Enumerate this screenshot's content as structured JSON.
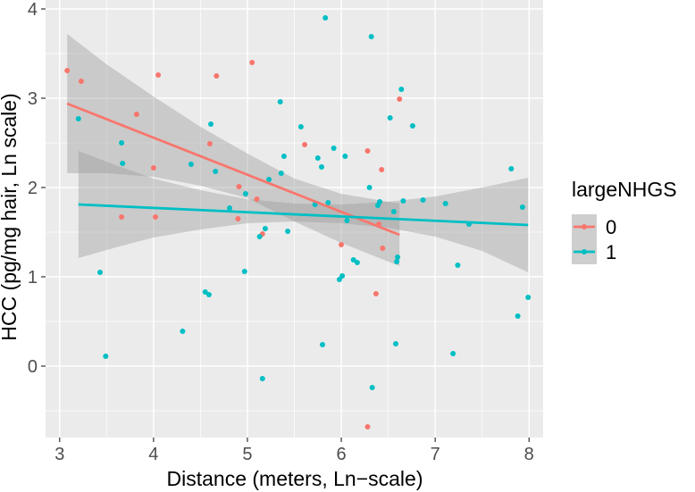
{
  "chart_data": {
    "type": "scatter",
    "title": "",
    "xlabel": "Distance (meters, Ln−scale)",
    "ylabel": "HCC (pg/mg hair, Ln scale)",
    "xlim": [
      2.85,
      8.15
    ],
    "ylim": [
      -0.8,
      4.1
    ],
    "x_ticks": [
      3,
      4,
      5,
      6,
      7,
      8
    ],
    "y_ticks": [
      0,
      1,
      2,
      3,
      4
    ],
    "x_tick_labels": [
      "3",
      "4",
      "5",
      "6",
      "7",
      "8"
    ],
    "y_tick_labels": [
      "0",
      "1",
      "2",
      "3",
      "4"
    ],
    "grid": true,
    "background": "#ebebeb",
    "legend": {
      "title": "largeNHGS",
      "position": "right",
      "entries": [
        "0",
        "1"
      ]
    },
    "series": [
      {
        "name": "0",
        "color": "#f8766d",
        "points": [
          [
            3.08,
            3.31
          ],
          [
            3.23,
            3.19
          ],
          [
            3.66,
            1.67
          ],
          [
            3.82,
            2.82
          ],
          [
            4.0,
            2.22
          ],
          [
            4.02,
            1.67
          ],
          [
            4.05,
            3.26
          ],
          [
            4.6,
            2.49
          ],
          [
            4.67,
            3.25
          ],
          [
            4.9,
            1.65
          ],
          [
            4.91,
            2.01
          ],
          [
            5.05,
            3.4
          ],
          [
            5.1,
            1.87
          ],
          [
            5.16,
            1.48
          ],
          [
            5.61,
            2.48
          ],
          [
            6.0,
            1.36
          ],
          [
            6.28,
            2.41
          ],
          [
            6.28,
            -0.68
          ],
          [
            6.37,
            0.81
          ],
          [
            6.4,
            1.59
          ],
          [
            6.43,
            2.2
          ],
          [
            6.44,
            1.32
          ],
          [
            6.62,
            2.99
          ]
        ],
        "fit": {
          "x": [
            3.08,
            6.62
          ],
          "y": [
            2.94,
            1.47
          ]
        },
        "band": {
          "x": [
            3.08,
            3.5,
            4.0,
            4.5,
            5.0,
            5.5,
            6.0,
            6.62
          ],
          "upper": [
            3.72,
            3.38,
            3.02,
            2.68,
            2.38,
            2.1,
            1.93,
            1.82
          ],
          "lower": [
            2.16,
            2.16,
            2.12,
            2.02,
            1.88,
            1.62,
            1.38,
            1.12
          ]
        }
      },
      {
        "name": "1",
        "color": "#00bfc4",
        "points": [
          [
            3.2,
            2.77
          ],
          [
            3.43,
            1.05
          ],
          [
            3.49,
            0.11
          ],
          [
            3.66,
            2.5
          ],
          [
            3.67,
            2.27
          ],
          [
            4.31,
            0.39
          ],
          [
            4.4,
            2.26
          ],
          [
            4.55,
            0.83
          ],
          [
            4.59,
            0.8
          ],
          [
            4.61,
            2.71
          ],
          [
            4.66,
            2.18
          ],
          [
            4.81,
            1.77
          ],
          [
            4.97,
            1.06
          ],
          [
            4.98,
            1.93
          ],
          [
            5.13,
            1.45
          ],
          [
            5.16,
            -0.14
          ],
          [
            5.19,
            1.54
          ],
          [
            5.23,
            2.09
          ],
          [
            5.35,
            2.96
          ],
          [
            5.36,
            2.16
          ],
          [
            5.39,
            2.35
          ],
          [
            5.43,
            1.51
          ],
          [
            5.57,
            2.68
          ],
          [
            5.72,
            1.81
          ],
          [
            5.75,
            2.33
          ],
          [
            5.79,
            2.23
          ],
          [
            5.8,
            0.24
          ],
          [
            5.83,
            3.9
          ],
          [
            5.86,
            1.83
          ],
          [
            5.92,
            2.44
          ],
          [
            5.98,
            0.97
          ],
          [
            6.01,
            1.01
          ],
          [
            6.04,
            2.35
          ],
          [
            6.06,
            1.63
          ],
          [
            6.13,
            1.19
          ],
          [
            6.17,
            1.16
          ],
          [
            6.3,
            2.0
          ],
          [
            6.32,
            3.69
          ],
          [
            6.33,
            -0.24
          ],
          [
            6.39,
            1.8
          ],
          [
            6.41,
            1.84
          ],
          [
            6.52,
            2.78
          ],
          [
            6.56,
            1.73
          ],
          [
            6.58,
            0.25
          ],
          [
            6.59,
            1.17
          ],
          [
            6.6,
            1.22
          ],
          [
            6.64,
            3.1
          ],
          [
            6.66,
            1.85
          ],
          [
            6.76,
            2.69
          ],
          [
            6.87,
            1.86
          ],
          [
            7.11,
            1.82
          ],
          [
            7.19,
            0.14
          ],
          [
            7.24,
            1.13
          ],
          [
            7.36,
            1.59
          ],
          [
            7.81,
            2.21
          ],
          [
            7.88,
            0.56
          ],
          [
            7.93,
            1.78
          ],
          [
            7.99,
            0.77
          ]
        ],
        "fit": {
          "x": [
            3.2,
            7.99
          ],
          "y": [
            1.81,
            1.58
          ]
        },
        "band": {
          "x": [
            3.2,
            3.6,
            4.0,
            4.5,
            5.0,
            5.5,
            6.0,
            6.5,
            7.0,
            7.5,
            7.99
          ],
          "upper": [
            2.41,
            2.25,
            2.1,
            1.97,
            1.87,
            1.82,
            1.81,
            1.84,
            1.9,
            2.0,
            2.11
          ],
          "lower": [
            1.21,
            1.33,
            1.44,
            1.53,
            1.6,
            1.62,
            1.6,
            1.55,
            1.45,
            1.29,
            1.05
          ]
        }
      }
    ]
  }
}
